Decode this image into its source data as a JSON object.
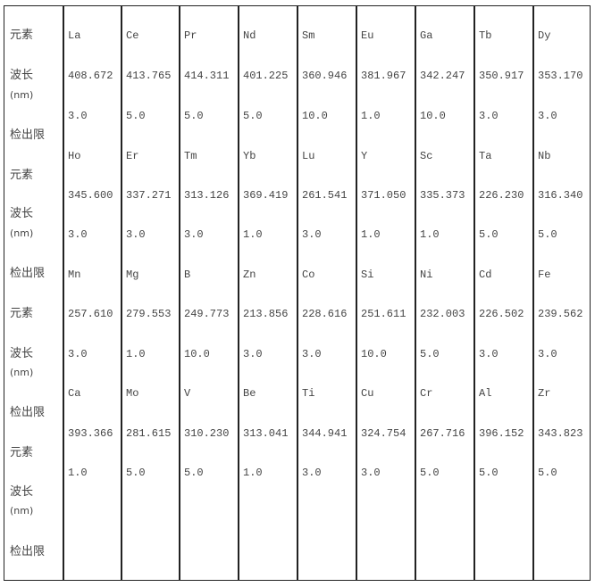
{
  "labels": {
    "element": "元素",
    "wavelength": "波长",
    "unit": "(nm)",
    "detection_limit": "检出限"
  },
  "groups": [
    {
      "elements": [
        "La",
        "Ce",
        "Pr",
        "Nd",
        "Sm",
        "Eu",
        "Ga",
        "Tb",
        "Dy"
      ],
      "wavelengths": [
        "408.672",
        "413.765",
        "414.311",
        "401.225",
        "360.946",
        "381.967",
        "342.247",
        "350.917",
        "353.170"
      ],
      "limits": [
        "3.0",
        "5.0",
        "5.0",
        "5.0",
        "10.0",
        "1.0",
        "10.0",
        "3.0",
        "3.0"
      ]
    },
    {
      "elements": [
        "Ho",
        "Er",
        "Tm",
        "Yb",
        "Lu",
        "Y",
        "Sc",
        "Ta",
        "Nb"
      ],
      "wavelengths": [
        "345.600",
        "337.271",
        "313.126",
        "369.419",
        "261.541",
        "371.050",
        "335.373",
        "226.230",
        "316.340"
      ],
      "limits": [
        "3.0",
        "3.0",
        "3.0",
        "1.0",
        "3.0",
        "1.0",
        "1.0",
        "5.0",
        "5.0"
      ]
    },
    {
      "elements": [
        "Mn",
        "Mg",
        "B",
        "Zn",
        "Co",
        "Si",
        "Ni",
        "Cd",
        "Fe"
      ],
      "wavelengths": [
        "257.610",
        "279.553",
        "249.773",
        "213.856",
        "228.616",
        "251.611",
        "232.003",
        "226.502",
        "239.562"
      ],
      "limits": [
        "3.0",
        "1.0",
        "10.0",
        "3.0",
        "3.0",
        "10.0",
        "5.0",
        "3.0",
        "3.0"
      ]
    },
    {
      "elements": [
        "Ca",
        "Mo",
        "V",
        "Be",
        "Ti",
        "Cu",
        "Cr",
        "Al",
        "Zr"
      ],
      "wavelengths": [
        "393.366",
        "281.615",
        "310.230",
        "313.041",
        "344.941",
        "324.754",
        "267.716",
        "396.152",
        "343.823"
      ],
      "limits": [
        "1.0",
        "5.0",
        "5.0",
        "1.0",
        "3.0",
        "3.0",
        "5.0",
        "5.0",
        "5.0"
      ]
    }
  ]
}
